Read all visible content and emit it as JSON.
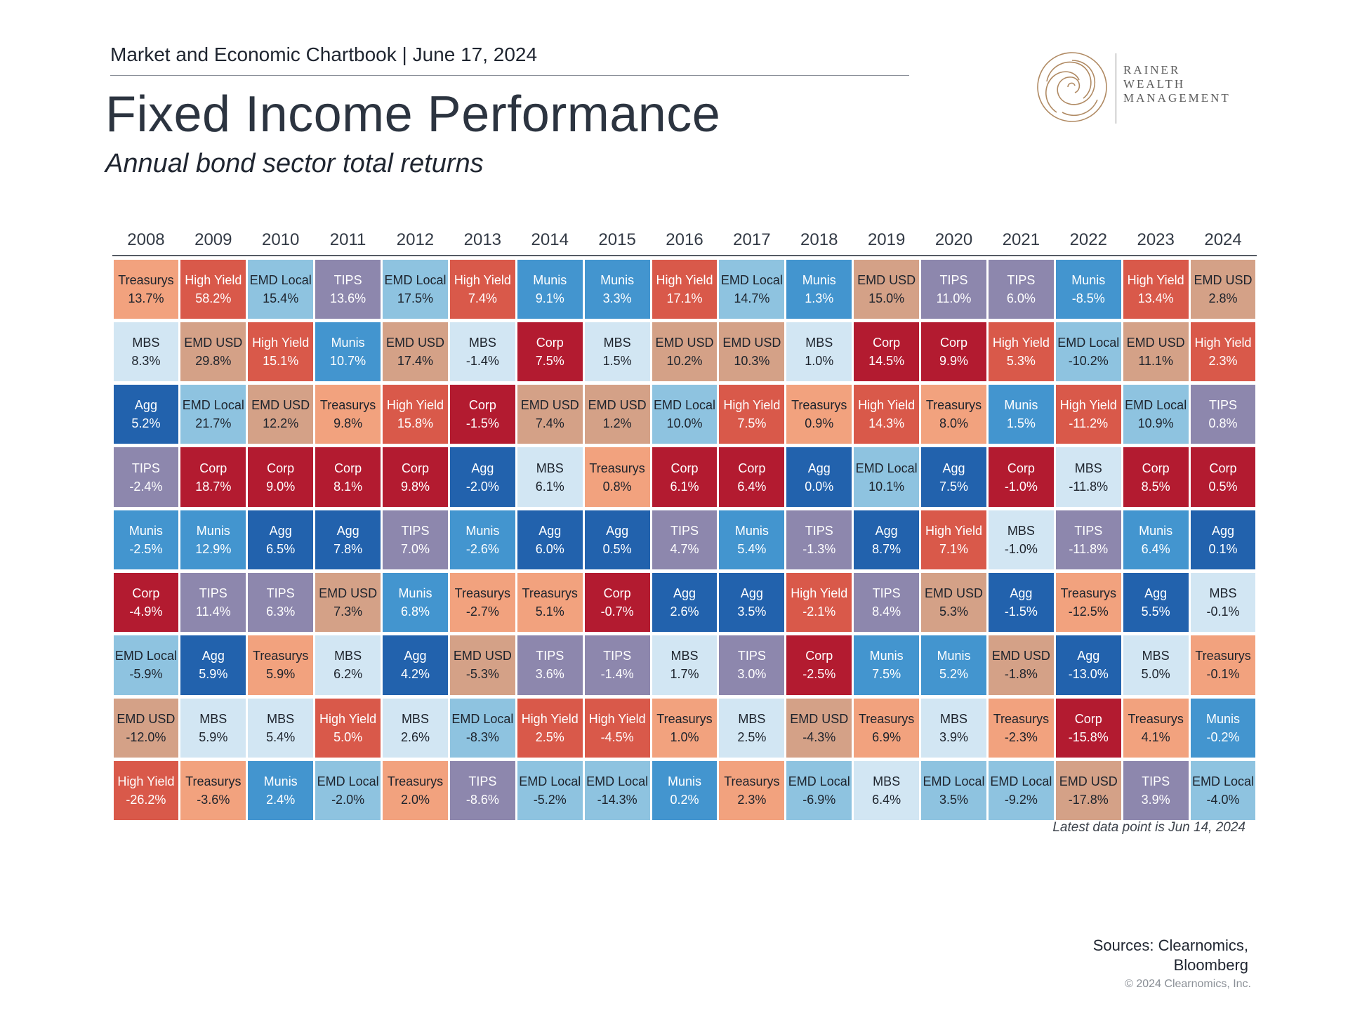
{
  "header": {
    "chartbook": "Market and Economic Chartbook | June 17, 2024",
    "title": "Fixed Income Performance",
    "subtitle": "Annual bond sector total returns"
  },
  "logo": {
    "line1": "RAINER",
    "line2": "WEALTH",
    "line3": "MANAGEMENT"
  },
  "colors": {
    "Treasurys": "#f2a27e",
    "High Yield": "#d9594a",
    "EMD Local": "#8ec3e0",
    "TIPS": "#8d87ad",
    "Munis": "#4395cf",
    "MBS": "#d2e6f3",
    "EMD USD": "#d4a187",
    "Agg": "#2262ad",
    "Corp": "#b31b30"
  },
  "dark_text_sectors": [
    "Treasurys",
    "MBS",
    "EMD USD",
    "EMD Local"
  ],
  "chart_data": {
    "type": "table",
    "title": "Fixed Income Performance",
    "subtitle": "Annual bond sector total returns",
    "years": [
      "2008",
      "2009",
      "2010",
      "2011",
      "2012",
      "2013",
      "2014",
      "2015",
      "2016",
      "2017",
      "2018",
      "2019",
      "2020",
      "2021",
      "2022",
      "2023",
      "2024"
    ],
    "columns": [
      [
        [
          "Treasurys",
          "13.7%"
        ],
        [
          "MBS",
          "8.3%"
        ],
        [
          "Agg",
          "5.2%"
        ],
        [
          "TIPS",
          "-2.4%"
        ],
        [
          "Munis",
          "-2.5%"
        ],
        [
          "Corp",
          "-4.9%"
        ],
        [
          "EMD Local",
          "-5.9%"
        ],
        [
          "EMD USD",
          "-12.0%"
        ],
        [
          "High Yield",
          "-26.2%"
        ]
      ],
      [
        [
          "High Yield",
          "58.2%"
        ],
        [
          "EMD USD",
          "29.8%"
        ],
        [
          "EMD Local",
          "21.7%"
        ],
        [
          "Corp",
          "18.7%"
        ],
        [
          "Munis",
          "12.9%"
        ],
        [
          "TIPS",
          "11.4%"
        ],
        [
          "Agg",
          "5.9%"
        ],
        [
          "MBS",
          "5.9%"
        ],
        [
          "Treasurys",
          "-3.6%"
        ]
      ],
      [
        [
          "EMD Local",
          "15.4%"
        ],
        [
          "High Yield",
          "15.1%"
        ],
        [
          "EMD USD",
          "12.2%"
        ],
        [
          "Corp",
          "9.0%"
        ],
        [
          "Agg",
          "6.5%"
        ],
        [
          "TIPS",
          "6.3%"
        ],
        [
          "Treasurys",
          "5.9%"
        ],
        [
          "MBS",
          "5.4%"
        ],
        [
          "Munis",
          "2.4%"
        ]
      ],
      [
        [
          "TIPS",
          "13.6%"
        ],
        [
          "Munis",
          "10.7%"
        ],
        [
          "Treasurys",
          "9.8%"
        ],
        [
          "Corp",
          "8.1%"
        ],
        [
          "Agg",
          "7.8%"
        ],
        [
          "EMD USD",
          "7.3%"
        ],
        [
          "MBS",
          "6.2%"
        ],
        [
          "High Yield",
          "5.0%"
        ],
        [
          "EMD Local",
          "-2.0%"
        ]
      ],
      [
        [
          "EMD Local",
          "17.5%"
        ],
        [
          "EMD USD",
          "17.4%"
        ],
        [
          "High Yield",
          "15.8%"
        ],
        [
          "Corp",
          "9.8%"
        ],
        [
          "TIPS",
          "7.0%"
        ],
        [
          "Munis",
          "6.8%"
        ],
        [
          "Agg",
          "4.2%"
        ],
        [
          "MBS",
          "2.6%"
        ],
        [
          "Treasurys",
          "2.0%"
        ]
      ],
      [
        [
          "High Yield",
          "7.4%"
        ],
        [
          "MBS",
          "-1.4%"
        ],
        [
          "Corp",
          "-1.5%"
        ],
        [
          "Agg",
          "-2.0%"
        ],
        [
          "Munis",
          "-2.6%"
        ],
        [
          "Treasurys",
          "-2.7%"
        ],
        [
          "EMD USD",
          "-5.3%"
        ],
        [
          "EMD Local",
          "-8.3%"
        ],
        [
          "TIPS",
          "-8.6%"
        ]
      ],
      [
        [
          "Munis",
          "9.1%"
        ],
        [
          "Corp",
          "7.5%"
        ],
        [
          "EMD USD",
          "7.4%"
        ],
        [
          "MBS",
          "6.1%"
        ],
        [
          "Agg",
          "6.0%"
        ],
        [
          "Treasurys",
          "5.1%"
        ],
        [
          "TIPS",
          "3.6%"
        ],
        [
          "High Yield",
          "2.5%"
        ],
        [
          "EMD Local",
          "-5.2%"
        ]
      ],
      [
        [
          "Munis",
          "3.3%"
        ],
        [
          "MBS",
          "1.5%"
        ],
        [
          "EMD USD",
          "1.2%"
        ],
        [
          "Treasurys",
          "0.8%"
        ],
        [
          "Agg",
          "0.5%"
        ],
        [
          "Corp",
          "-0.7%"
        ],
        [
          "TIPS",
          "-1.4%"
        ],
        [
          "High Yield",
          "-4.5%"
        ],
        [
          "EMD Local",
          "-14.3%"
        ]
      ],
      [
        [
          "High Yield",
          "17.1%"
        ],
        [
          "EMD USD",
          "10.2%"
        ],
        [
          "EMD Local",
          "10.0%"
        ],
        [
          "Corp",
          "6.1%"
        ],
        [
          "TIPS",
          "4.7%"
        ],
        [
          "Agg",
          "2.6%"
        ],
        [
          "MBS",
          "1.7%"
        ],
        [
          "Treasurys",
          "1.0%"
        ],
        [
          "Munis",
          "0.2%"
        ]
      ],
      [
        [
          "EMD Local",
          "14.7%"
        ],
        [
          "EMD USD",
          "10.3%"
        ],
        [
          "High Yield",
          "7.5%"
        ],
        [
          "Corp",
          "6.4%"
        ],
        [
          "Munis",
          "5.4%"
        ],
        [
          "Agg",
          "3.5%"
        ],
        [
          "TIPS",
          "3.0%"
        ],
        [
          "MBS",
          "2.5%"
        ],
        [
          "Treasurys",
          "2.3%"
        ]
      ],
      [
        [
          "Munis",
          "1.3%"
        ],
        [
          "MBS",
          "1.0%"
        ],
        [
          "Treasurys",
          "0.9%"
        ],
        [
          "Agg",
          "0.0%"
        ],
        [
          "TIPS",
          "-1.3%"
        ],
        [
          "High Yield",
          "-2.1%"
        ],
        [
          "Corp",
          "-2.5%"
        ],
        [
          "EMD USD",
          "-4.3%"
        ],
        [
          "EMD Local",
          "-6.9%"
        ]
      ],
      [
        [
          "EMD USD",
          "15.0%"
        ],
        [
          "Corp",
          "14.5%"
        ],
        [
          "High Yield",
          "14.3%"
        ],
        [
          "EMD Local",
          "10.1%"
        ],
        [
          "Agg",
          "8.7%"
        ],
        [
          "TIPS",
          "8.4%"
        ],
        [
          "Munis",
          "7.5%"
        ],
        [
          "Treasurys",
          "6.9%"
        ],
        [
          "MBS",
          "6.4%"
        ]
      ],
      [
        [
          "TIPS",
          "11.0%"
        ],
        [
          "Corp",
          "9.9%"
        ],
        [
          "Treasurys",
          "8.0%"
        ],
        [
          "Agg",
          "7.5%"
        ],
        [
          "High Yield",
          "7.1%"
        ],
        [
          "EMD USD",
          "5.3%"
        ],
        [
          "Munis",
          "5.2%"
        ],
        [
          "MBS",
          "3.9%"
        ],
        [
          "EMD Local",
          "3.5%"
        ]
      ],
      [
        [
          "TIPS",
          "6.0%"
        ],
        [
          "High Yield",
          "5.3%"
        ],
        [
          "Munis",
          "1.5%"
        ],
        [
          "Corp",
          "-1.0%"
        ],
        [
          "MBS",
          "-1.0%"
        ],
        [
          "Agg",
          "-1.5%"
        ],
        [
          "EMD USD",
          "-1.8%"
        ],
        [
          "Treasurys",
          "-2.3%"
        ],
        [
          "EMD Local",
          "-9.2%"
        ]
      ],
      [
        [
          "Munis",
          "-8.5%"
        ],
        [
          "EMD Local",
          "-10.2%"
        ],
        [
          "High Yield",
          "-11.2%"
        ],
        [
          "MBS",
          "-11.8%"
        ],
        [
          "TIPS",
          "-11.8%"
        ],
        [
          "Treasurys",
          "-12.5%"
        ],
        [
          "Agg",
          "-13.0%"
        ],
        [
          "Corp",
          "-15.8%"
        ],
        [
          "EMD USD",
          "-17.8%"
        ]
      ],
      [
        [
          "High Yield",
          "13.4%"
        ],
        [
          "EMD USD",
          "11.1%"
        ],
        [
          "EMD Local",
          "10.9%"
        ],
        [
          "Corp",
          "8.5%"
        ],
        [
          "Munis",
          "6.4%"
        ],
        [
          "Agg",
          "5.5%"
        ],
        [
          "MBS",
          "5.0%"
        ],
        [
          "Treasurys",
          "4.1%"
        ],
        [
          "TIPS",
          "3.9%"
        ]
      ],
      [
        [
          "EMD USD",
          "2.8%"
        ],
        [
          "High Yield",
          "2.3%"
        ],
        [
          "TIPS",
          "0.8%"
        ],
        [
          "Corp",
          "0.5%"
        ],
        [
          "Agg",
          "0.1%"
        ],
        [
          "MBS",
          "-0.1%"
        ],
        [
          "Treasurys",
          "-0.1%"
        ],
        [
          "Munis",
          "-0.2%"
        ],
        [
          "EMD Local",
          "-4.0%"
        ]
      ]
    ]
  },
  "footer": {
    "note": "Latest data point is Jun 14, 2024",
    "sources_line1": "Sources: Clearnomics,",
    "sources_line2": "Bloomberg",
    "copyright": "© 2024 Clearnomics, Inc."
  }
}
